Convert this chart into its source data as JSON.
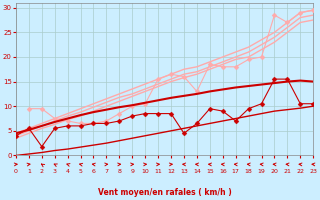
{
  "bg_color": "#cceeff",
  "grid_color": "#aacccc",
  "xlabel": "Vent moyen/en rafales ( km/h )",
  "xlabel_color": "#cc0000",
  "tick_color": "#cc0000",
  "xmin": 0,
  "xmax": 23,
  "ymin": 0,
  "ymax": 31,
  "yticks": [
    0,
    5,
    10,
    15,
    20,
    25,
    30
  ],
  "xticks": [
    0,
    1,
    2,
    3,
    4,
    5,
    6,
    7,
    8,
    9,
    10,
    11,
    12,
    13,
    14,
    15,
    16,
    17,
    18,
    19,
    20,
    21,
    22,
    23
  ],
  "lines": [
    {
      "x": [
        0,
        1,
        2,
        3,
        4,
        5,
        6,
        7,
        8,
        9,
        10,
        11,
        12,
        13,
        14,
        15,
        16,
        17,
        18,
        19,
        20,
        21,
        22,
        23
      ],
      "y": [
        4.5,
        5.5,
        6.5,
        7.5,
        8.5,
        9.5,
        10.5,
        11.5,
        12.5,
        13.5,
        14.5,
        15.5,
        16.5,
        17.5,
        18.0,
        19.0,
        20.0,
        21.0,
        22.0,
        23.5,
        25.0,
        27.0,
        29.0,
        29.5
      ],
      "color": "#ffaaaa",
      "lw": 1.0,
      "marker": null
    },
    {
      "x": [
        0,
        1,
        2,
        3,
        4,
        5,
        6,
        7,
        8,
        9,
        10,
        11,
        12,
        13,
        14,
        15,
        16,
        17,
        18,
        19,
        20,
        21,
        22,
        23
      ],
      "y": [
        4.0,
        5.0,
        6.0,
        7.0,
        8.0,
        8.8,
        9.8,
        10.8,
        11.8,
        12.5,
        13.5,
        14.5,
        15.5,
        16.5,
        17.0,
        18.0,
        19.0,
        20.0,
        21.0,
        22.5,
        24.0,
        26.0,
        28.0,
        28.5
      ],
      "color": "#ffaaaa",
      "lw": 1.0,
      "marker": null
    },
    {
      "x": [
        0,
        1,
        2,
        3,
        4,
        5,
        6,
        7,
        8,
        9,
        10,
        11,
        12,
        13,
        14,
        15,
        16,
        17,
        18,
        19,
        20,
        21,
        22,
        23
      ],
      "y": [
        3.5,
        4.5,
        5.5,
        6.3,
        7.3,
        8.0,
        9.0,
        10.0,
        11.0,
        12.0,
        13.0,
        14.0,
        15.0,
        15.8,
        16.5,
        17.5,
        18.5,
        19.5,
        20.0,
        21.5,
        23.0,
        25.0,
        27.0,
        27.5
      ],
      "color": "#ffaaaa",
      "lw": 1.0,
      "marker": null
    },
    {
      "x": [
        1,
        2,
        3,
        4,
        5,
        6,
        7,
        8,
        9,
        10,
        11,
        12,
        13,
        14,
        15,
        16,
        17,
        18,
        19,
        20,
        21,
        22,
        23
      ],
      "y": [
        9.5,
        9.5,
        7.5,
        7.0,
        6.5,
        6.5,
        7.0,
        8.5,
        10.0,
        10.5,
        15.5,
        16.5,
        16.0,
        13.0,
        18.5,
        18.0,
        18.0,
        19.5,
        20.0,
        28.5,
        27.0,
        29.0,
        29.5
      ],
      "color": "#ffaaaa",
      "lw": 0.8,
      "marker": "D",
      "markersize": 2.5
    },
    {
      "x": [
        0,
        1,
        2,
        3,
        4,
        5,
        6,
        7,
        8,
        9,
        10,
        11,
        12,
        13,
        14,
        15,
        16,
        17,
        18,
        19,
        20,
        21,
        22,
        23
      ],
      "y": [
        4.5,
        5.2,
        6.0,
        6.8,
        7.5,
        8.2,
        8.8,
        9.3,
        9.8,
        10.2,
        10.7,
        11.2,
        11.7,
        12.1,
        12.5,
        13.0,
        13.4,
        13.8,
        14.1,
        14.4,
        14.7,
        15.0,
        15.2,
        15.0
      ],
      "color": "#cc0000",
      "lw": 1.5,
      "marker": null
    },
    {
      "x": [
        0,
        1,
        2,
        3,
        4,
        5,
        6,
        7,
        8,
        9,
        10,
        11,
        12,
        13,
        14,
        15,
        16,
        17,
        18,
        19,
        20,
        21,
        22,
        23
      ],
      "y": [
        4.0,
        5.5,
        1.8,
        5.5,
        6.0,
        6.0,
        6.5,
        6.5,
        7.0,
        8.0,
        8.5,
        8.5,
        8.5,
        4.5,
        6.5,
        9.5,
        9.0,
        7.0,
        9.5,
        10.5,
        15.5,
        15.5,
        10.5,
        10.5
      ],
      "color": "#cc0000",
      "lw": 0.8,
      "marker": "D",
      "markersize": 2.5
    },
    {
      "x": [
        0,
        1,
        2,
        3,
        4,
        5,
        6,
        7,
        8,
        9,
        10,
        11,
        12,
        13,
        14,
        15,
        16,
        17,
        18,
        19,
        20,
        21,
        22,
        23
      ],
      "y": [
        0.0,
        0.3,
        0.6,
        1.0,
        1.3,
        1.7,
        2.1,
        2.5,
        3.0,
        3.5,
        4.0,
        4.5,
        5.0,
        5.5,
        6.0,
        6.5,
        7.0,
        7.5,
        8.0,
        8.5,
        9.0,
        9.3,
        9.6,
        10.0
      ],
      "color": "#cc0000",
      "lw": 1.0,
      "marker": null
    }
  ],
  "arrow_angles_deg": [
    80,
    70,
    -30,
    -40,
    -50,
    -60,
    -70,
    80,
    80,
    80,
    80,
    80,
    80,
    -80,
    -80,
    -80,
    -80,
    -80,
    -80,
    -80,
    -80,
    -80,
    -80,
    -80
  ]
}
